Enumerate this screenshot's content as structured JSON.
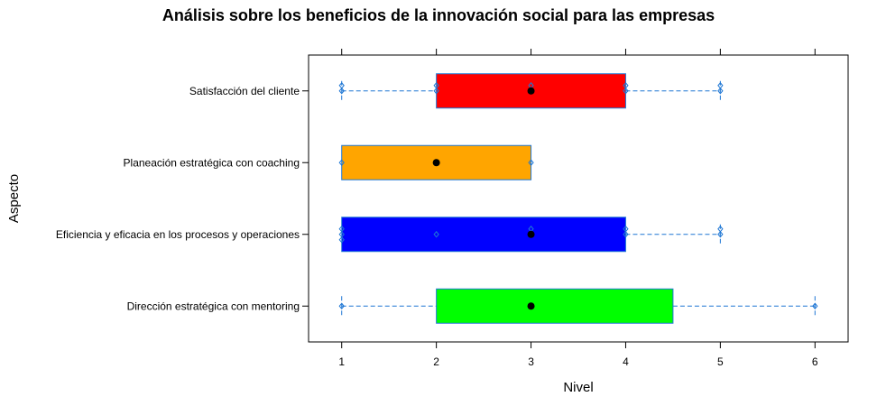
{
  "chart_data": {
    "type": "boxplot",
    "orientation": "horizontal",
    "title": "Análisis sobre los beneficios de la innovación social para las empresas",
    "xlabel": "Nivel",
    "ylabel": "Aspecto",
    "xlim": [
      0.65,
      6.35
    ],
    "xticks": [
      1,
      2,
      3,
      4,
      5,
      6
    ],
    "grid": false,
    "legend": "none",
    "whisker_color": "#1f77d4",
    "box_border_color": "#1f77d4",
    "median_color": "#000000",
    "categories": [
      "Dirección estratégica con mentoring",
      "Eficiencia y eficacia en los procesos y operaciones",
      "Planeación estratégica con coaching",
      "Satisfacción del cliente"
    ],
    "boxes": [
      {
        "category": "Dirección estratégica con mentoring",
        "min": 1,
        "q1": 2,
        "median": 3,
        "q3": 4.5,
        "max": 6,
        "color": "#00ff00",
        "points": [
          1,
          3,
          6
        ]
      },
      {
        "category": "Eficiencia y eficacia en los procesos y operaciones",
        "min": 1,
        "q1": 1,
        "median": 3,
        "q3": 4,
        "max": 5,
        "color": "#0000ff",
        "points": [
          1,
          1,
          1,
          2,
          3,
          3,
          4,
          4,
          5,
          5
        ]
      },
      {
        "category": "Planeación estratégica con coaching",
        "min": 1,
        "q1": 1,
        "median": 2,
        "q3": 3,
        "max": 3,
        "color": "#ffa500",
        "points": [
          1,
          2,
          3
        ]
      },
      {
        "category": "Satisfacción del cliente",
        "min": 1,
        "q1": 2,
        "median": 3,
        "q3": 4,
        "max": 5,
        "color": "#ff0000",
        "points": [
          1,
          1,
          2,
          2,
          3,
          3,
          4,
          4,
          5,
          5
        ]
      }
    ]
  }
}
